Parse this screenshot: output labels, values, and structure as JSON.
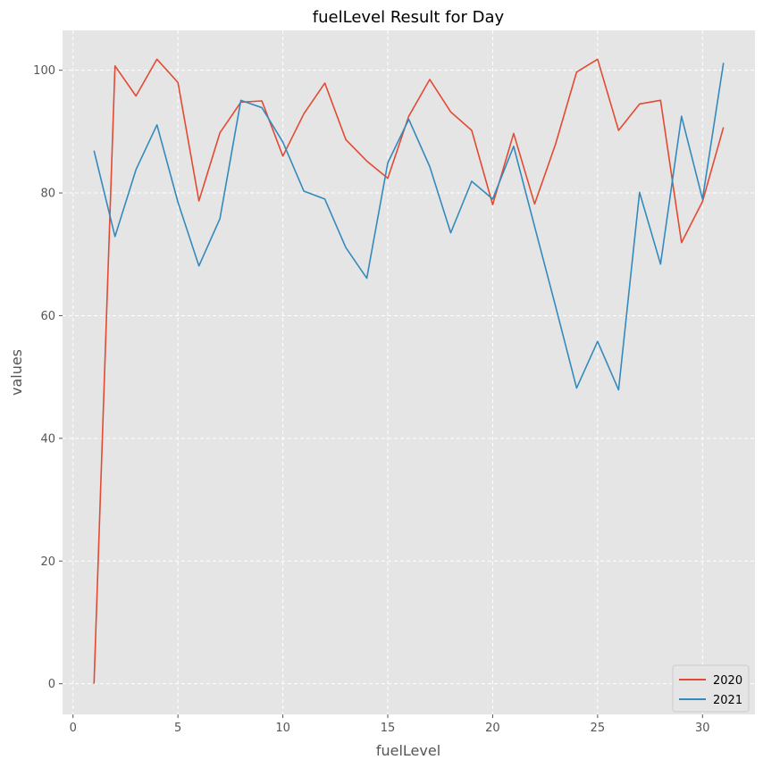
{
  "chart_data": {
    "type": "line",
    "title": "fuelLevel Result for Day",
    "xlabel": "fuelLevel",
    "ylabel": "values",
    "xlim": [
      -0.5,
      32.5
    ],
    "ylim": [
      -5,
      106.5
    ],
    "xticks": [
      0,
      5,
      10,
      15,
      20,
      25,
      30
    ],
    "yticks": [
      0,
      20,
      40,
      60,
      80,
      100
    ],
    "grid": true,
    "legend": "lower right",
    "x": [
      1,
      2,
      3,
      4,
      5,
      6,
      7,
      8,
      9,
      10,
      11,
      12,
      13,
      14,
      15,
      16,
      17,
      18,
      19,
      20,
      21,
      22,
      23,
      24,
      25,
      26,
      27,
      28,
      29,
      30,
      31
    ],
    "series": [
      {
        "name": "2020",
        "color": "#E24A33",
        "values": [
          0,
          100.7,
          95.8,
          101.8,
          98.0,
          78.7,
          89.8,
          94.8,
          95.0,
          86.0,
          92.9,
          97.9,
          88.7,
          85.2,
          82.4,
          92.5,
          98.5,
          93.2,
          90.2,
          78.1,
          89.7,
          78.2,
          88.0,
          99.7,
          101.8,
          90.2,
          94.5,
          95.1,
          71.9,
          78.6,
          90.7
        ]
      },
      {
        "name": "2021",
        "color": "#348ABD",
        "values": [
          86.9,
          72.9,
          83.8,
          91.1,
          78.5,
          68.1,
          75.8,
          95.1,
          93.9,
          88.3,
          80.3,
          79.0,
          71.1,
          66.1,
          84.9,
          92.0,
          84.3,
          73.5,
          81.9,
          79.0,
          87.6,
          74.5,
          61.5,
          48.2,
          55.8,
          47.9,
          80.1,
          68.4,
          92.5,
          79.0,
          101.2
        ]
      }
    ]
  }
}
